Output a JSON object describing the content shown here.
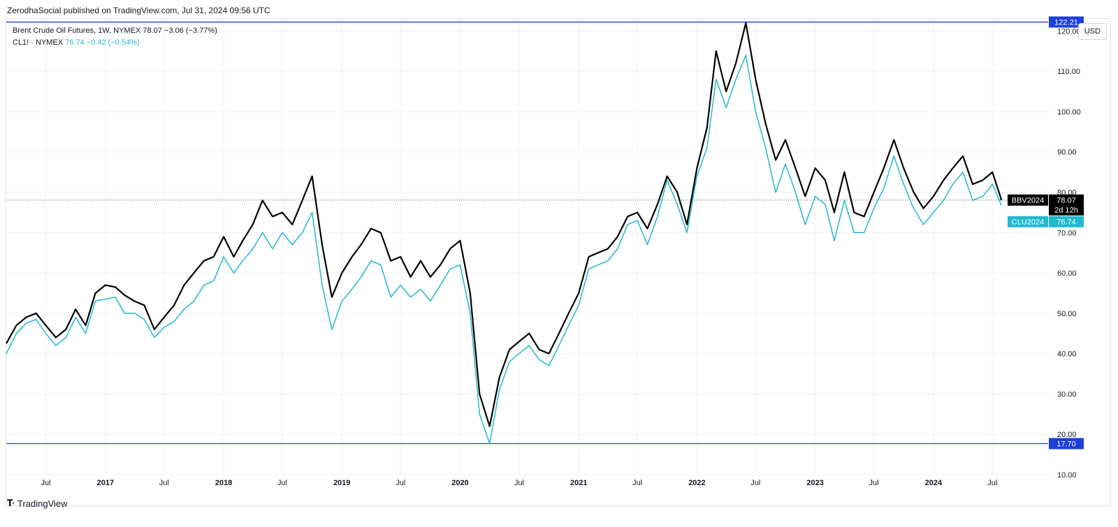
{
  "attribution": "ZerodhaSocial published on TradingView.com, Jul 31, 2024 09:56 UTC",
  "legend": {
    "main": {
      "symbol": "Brent Crude Oil Futures, 1W, NYMEX",
      "value": "78.07",
      "change": "−3.06 (−3.77%)"
    },
    "compare": {
      "symbol": "CL1! · NYMEX",
      "value": "76.74",
      "change": "−0.42 (−0.54%)"
    }
  },
  "currency": "USD",
  "footer": "TradingView",
  "colors": {
    "brent": "#000000",
    "wti": "#22b8cf",
    "hline": "#1e40d8",
    "grid": "#f0f3fa"
  },
  "chart_data": {
    "type": "line",
    "y_range": [
      10,
      123
    ],
    "y_ticks": [
      "10.00",
      "20.00",
      "30.00",
      "40.00",
      "50.00",
      "60.00",
      "70.00",
      "80.00",
      "90.00",
      "100.00",
      "110.00",
      "120.00"
    ],
    "x_ticks": [
      {
        "label": "Jul",
        "x": "2016-07-01",
        "bold": false
      },
      {
        "label": "2017",
        "x": "2017-01-01",
        "bold": true
      },
      {
        "label": "Jul",
        "x": "2017-07-01",
        "bold": false
      },
      {
        "label": "2018",
        "x": "2018-01-01",
        "bold": true
      },
      {
        "label": "Jul",
        "x": "2018-07-01",
        "bold": false
      },
      {
        "label": "2019",
        "x": "2019-01-01",
        "bold": true
      },
      {
        "label": "Jul",
        "x": "2019-07-01",
        "bold": false
      },
      {
        "label": "2020",
        "x": "2020-01-01",
        "bold": true
      },
      {
        "label": "Jul",
        "x": "2020-07-01",
        "bold": false
      },
      {
        "label": "2021",
        "x": "2021-01-01",
        "bold": true
      },
      {
        "label": "Jul",
        "x": "2021-07-01",
        "bold": false
      },
      {
        "label": "2022",
        "x": "2022-01-01",
        "bold": true
      },
      {
        "label": "Jul",
        "x": "2022-07-01",
        "bold": false
      },
      {
        "label": "2023",
        "x": "2023-01-01",
        "bold": true
      },
      {
        "label": "Jul",
        "x": "2023-07-01",
        "bold": false
      },
      {
        "label": "2024",
        "x": "2024-01-01",
        "bold": true
      },
      {
        "label": "Jul",
        "x": "2024-07-01",
        "bold": false
      }
    ],
    "horizontal_lines": [
      {
        "value": 122.21,
        "label": "122.21"
      },
      {
        "value": 17.7,
        "label": "17.70"
      }
    ],
    "current_price_line": 78.07,
    "series": [
      {
        "name": "BBV2024",
        "last_value": "78.07",
        "countdown": "2d 12h",
        "points": [
          [
            "2016-03-01",
            42.5
          ],
          [
            "2016-04-01",
            47
          ],
          [
            "2016-05-01",
            49
          ],
          [
            "2016-06-01",
            50
          ],
          [
            "2016-07-01",
            47
          ],
          [
            "2016-08-01",
            44
          ],
          [
            "2016-09-01",
            46
          ],
          [
            "2016-10-01",
            51
          ],
          [
            "2016-11-01",
            47
          ],
          [
            "2016-12-01",
            55
          ],
          [
            "2017-01-01",
            57
          ],
          [
            "2017-02-01",
            56.5
          ],
          [
            "2017-03-01",
            54.5
          ],
          [
            "2017-04-01",
            53
          ],
          [
            "2017-05-01",
            52
          ],
          [
            "2017-06-01",
            46
          ],
          [
            "2017-07-01",
            49
          ],
          [
            "2017-08-01",
            52
          ],
          [
            "2017-09-01",
            57
          ],
          [
            "2017-10-01",
            60
          ],
          [
            "2017-11-01",
            63
          ],
          [
            "2017-12-01",
            64
          ],
          [
            "2018-01-01",
            69
          ],
          [
            "2018-02-01",
            64
          ],
          [
            "2018-03-01",
            68
          ],
          [
            "2018-04-01",
            72
          ],
          [
            "2018-05-01",
            78
          ],
          [
            "2018-06-01",
            74
          ],
          [
            "2018-07-01",
            75
          ],
          [
            "2018-08-01",
            72
          ],
          [
            "2018-09-01",
            78
          ],
          [
            "2018-10-01",
            84
          ],
          [
            "2018-11-01",
            67
          ],
          [
            "2018-12-01",
            54
          ],
          [
            "2019-01-01",
            60
          ],
          [
            "2019-02-01",
            64
          ],
          [
            "2019-03-01",
            67
          ],
          [
            "2019-04-01",
            71
          ],
          [
            "2019-05-01",
            70
          ],
          [
            "2019-06-01",
            63
          ],
          [
            "2019-07-01",
            64
          ],
          [
            "2019-08-01",
            59
          ],
          [
            "2019-09-01",
            63
          ],
          [
            "2019-10-01",
            59
          ],
          [
            "2019-11-01",
            62
          ],
          [
            "2019-12-01",
            66
          ],
          [
            "2020-01-01",
            68
          ],
          [
            "2020-02-01",
            55
          ],
          [
            "2020-03-01",
            30
          ],
          [
            "2020-04-01",
            22
          ],
          [
            "2020-05-01",
            34
          ],
          [
            "2020-06-01",
            41
          ],
          [
            "2020-07-01",
            43
          ],
          [
            "2020-08-01",
            45
          ],
          [
            "2020-09-01",
            41
          ],
          [
            "2020-10-01",
            40
          ],
          [
            "2020-11-01",
            45
          ],
          [
            "2020-12-01",
            50
          ],
          [
            "2021-01-01",
            55
          ],
          [
            "2021-02-01",
            64
          ],
          [
            "2021-03-01",
            65
          ],
          [
            "2021-04-01",
            66
          ],
          [
            "2021-05-01",
            69
          ],
          [
            "2021-06-01",
            74
          ],
          [
            "2021-07-01",
            75
          ],
          [
            "2021-08-01",
            71
          ],
          [
            "2021-09-01",
            77
          ],
          [
            "2021-10-01",
            84
          ],
          [
            "2021-11-01",
            80
          ],
          [
            "2021-12-01",
            72
          ],
          [
            "2022-01-01",
            86
          ],
          [
            "2022-02-01",
            96
          ],
          [
            "2022-03-01",
            115
          ],
          [
            "2022-04-01",
            105
          ],
          [
            "2022-05-01",
            112
          ],
          [
            "2022-06-01",
            122
          ],
          [
            "2022-07-01",
            108
          ],
          [
            "2022-08-01",
            97
          ],
          [
            "2022-09-01",
            88
          ],
          [
            "2022-10-01",
            93
          ],
          [
            "2022-11-01",
            86
          ],
          [
            "2022-12-01",
            79
          ],
          [
            "2023-01-01",
            86
          ],
          [
            "2023-02-01",
            83
          ],
          [
            "2023-03-01",
            75
          ],
          [
            "2023-04-01",
            85
          ],
          [
            "2023-05-01",
            75
          ],
          [
            "2023-06-01",
            74
          ],
          [
            "2023-07-01",
            80
          ],
          [
            "2023-08-01",
            86
          ],
          [
            "2023-09-01",
            93
          ],
          [
            "2023-10-01",
            86
          ],
          [
            "2023-11-01",
            80
          ],
          [
            "2023-12-01",
            76
          ],
          [
            "2024-01-01",
            79
          ],
          [
            "2024-02-01",
            83
          ],
          [
            "2024-03-01",
            86
          ],
          [
            "2024-04-01",
            89
          ],
          [
            "2024-05-01",
            82
          ],
          [
            "2024-06-01",
            83
          ],
          [
            "2024-07-01",
            85
          ],
          [
            "2024-07-29",
            78.07
          ]
        ]
      },
      {
        "name": "CLU2024",
        "last_value": "76.74",
        "points": [
          [
            "2016-03-01",
            40
          ],
          [
            "2016-04-01",
            45
          ],
          [
            "2016-05-01",
            47.5
          ],
          [
            "2016-06-01",
            48.5
          ],
          [
            "2016-07-01",
            45
          ],
          [
            "2016-08-01",
            42
          ],
          [
            "2016-09-01",
            44
          ],
          [
            "2016-10-01",
            49
          ],
          [
            "2016-11-01",
            45
          ],
          [
            "2016-12-01",
            53
          ],
          [
            "2017-01-01",
            53.5
          ],
          [
            "2017-02-01",
            54
          ],
          [
            "2017-03-01",
            50
          ],
          [
            "2017-04-01",
            50
          ],
          [
            "2017-05-01",
            48.5
          ],
          [
            "2017-06-01",
            44
          ],
          [
            "2017-07-01",
            46.5
          ],
          [
            "2017-08-01",
            48
          ],
          [
            "2017-09-01",
            51
          ],
          [
            "2017-10-01",
            53
          ],
          [
            "2017-11-01",
            57
          ],
          [
            "2017-12-01",
            58
          ],
          [
            "2018-01-01",
            64
          ],
          [
            "2018-02-01",
            60
          ],
          [
            "2018-03-01",
            63
          ],
          [
            "2018-04-01",
            66
          ],
          [
            "2018-05-01",
            70
          ],
          [
            "2018-06-01",
            66
          ],
          [
            "2018-07-01",
            70
          ],
          [
            "2018-08-01",
            67
          ],
          [
            "2018-09-01",
            70
          ],
          [
            "2018-10-01",
            75
          ],
          [
            "2018-11-01",
            57
          ],
          [
            "2018-12-01",
            46
          ],
          [
            "2019-01-01",
            53
          ],
          [
            "2019-02-01",
            56
          ],
          [
            "2019-03-01",
            59
          ],
          [
            "2019-04-01",
            63
          ],
          [
            "2019-05-01",
            62
          ],
          [
            "2019-06-01",
            54
          ],
          [
            "2019-07-01",
            57
          ],
          [
            "2019-08-01",
            54
          ],
          [
            "2019-09-01",
            56
          ],
          [
            "2019-10-01",
            53
          ],
          [
            "2019-11-01",
            57
          ],
          [
            "2019-12-01",
            61
          ],
          [
            "2020-01-01",
            62
          ],
          [
            "2020-02-01",
            50
          ],
          [
            "2020-03-01",
            25
          ],
          [
            "2020-04-01",
            17.7
          ],
          [
            "2020-05-01",
            31
          ],
          [
            "2020-06-01",
            38
          ],
          [
            "2020-07-01",
            40
          ],
          [
            "2020-08-01",
            42
          ],
          [
            "2020-09-01",
            38.5
          ],
          [
            "2020-10-01",
            37
          ],
          [
            "2020-11-01",
            42
          ],
          [
            "2020-12-01",
            47
          ],
          [
            "2021-01-01",
            52
          ],
          [
            "2021-02-01",
            61
          ],
          [
            "2021-03-01",
            62
          ],
          [
            "2021-04-01",
            63
          ],
          [
            "2021-05-01",
            66
          ],
          [
            "2021-06-01",
            72
          ],
          [
            "2021-07-01",
            73
          ],
          [
            "2021-08-01",
            67
          ],
          [
            "2021-09-01",
            74
          ],
          [
            "2021-10-01",
            83
          ],
          [
            "2021-11-01",
            77
          ],
          [
            "2021-12-01",
            70
          ],
          [
            "2022-01-01",
            84
          ],
          [
            "2022-02-01",
            91
          ],
          [
            "2022-03-01",
            108
          ],
          [
            "2022-04-01",
            101
          ],
          [
            "2022-05-01",
            108
          ],
          [
            "2022-06-01",
            114
          ],
          [
            "2022-07-01",
            100
          ],
          [
            "2022-08-01",
            91
          ],
          [
            "2022-09-01",
            80
          ],
          [
            "2022-10-01",
            87
          ],
          [
            "2022-11-01",
            80
          ],
          [
            "2022-12-01",
            72
          ],
          [
            "2023-01-01",
            79
          ],
          [
            "2023-02-01",
            77
          ],
          [
            "2023-03-01",
            68
          ],
          [
            "2023-04-01",
            78
          ],
          [
            "2023-05-01",
            70
          ],
          [
            "2023-06-01",
            70
          ],
          [
            "2023-07-01",
            76
          ],
          [
            "2023-08-01",
            81
          ],
          [
            "2023-09-01",
            89
          ],
          [
            "2023-10-01",
            82
          ],
          [
            "2023-11-01",
            76
          ],
          [
            "2023-12-01",
            72
          ],
          [
            "2024-01-01",
            75
          ],
          [
            "2024-02-01",
            78
          ],
          [
            "2024-03-01",
            82
          ],
          [
            "2024-04-01",
            85
          ],
          [
            "2024-05-01",
            78
          ],
          [
            "2024-06-01",
            79
          ],
          [
            "2024-07-01",
            82
          ],
          [
            "2024-07-29",
            76.74
          ]
        ]
      }
    ]
  }
}
